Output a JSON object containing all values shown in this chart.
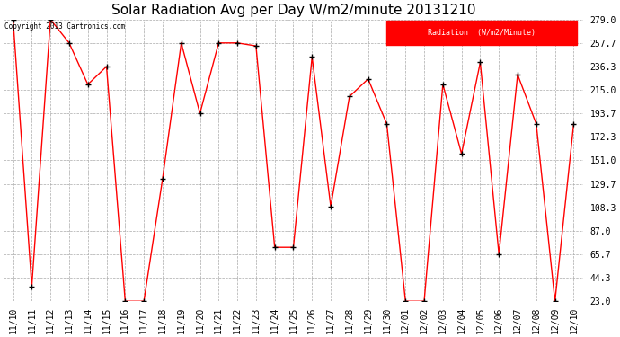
{
  "title": "Solar Radiation Avg per Day W/m2/minute 20131210",
  "copyright": "Copyright 2013 Cartronics.com",
  "legend_label": "Radiation  (W/m2/Minute)",
  "labels": [
    "11/10",
    "11/11",
    "11/12",
    "11/13",
    "11/14",
    "11/15",
    "11/16",
    "11/17",
    "11/18",
    "11/19",
    "11/20",
    "11/21",
    "11/22",
    "11/23",
    "11/24",
    "11/25",
    "11/26",
    "11/27",
    "11/28",
    "11/29",
    "11/30",
    "12/01",
    "12/02",
    "12/03",
    "12/04",
    "12/05",
    "12/06",
    "12/07",
    "12/08",
    "12/09",
    "12/10"
  ],
  "values": [
    279.0,
    36.3,
    279.0,
    257.7,
    220.0,
    236.3,
    23.0,
    23.0,
    134.3,
    257.7,
    193.7,
    257.7,
    257.7,
    255.0,
    72.0,
    72.0,
    245.0,
    109.0,
    209.0,
    225.0,
    184.0,
    23.0,
    23.0,
    220.0,
    157.0,
    240.0,
    65.7,
    229.0,
    184.0,
    23.0,
    184.0
  ],
  "yticks": [
    23.0,
    44.3,
    65.7,
    87.0,
    108.3,
    129.7,
    151.0,
    172.3,
    193.7,
    215.0,
    236.3,
    257.7,
    279.0
  ],
  "line_color": "red",
  "marker_color": "black",
  "bg_color": "#ffffff",
  "grid_color": "#aaaaaa",
  "title_fontsize": 11,
  "axis_fontsize": 7
}
